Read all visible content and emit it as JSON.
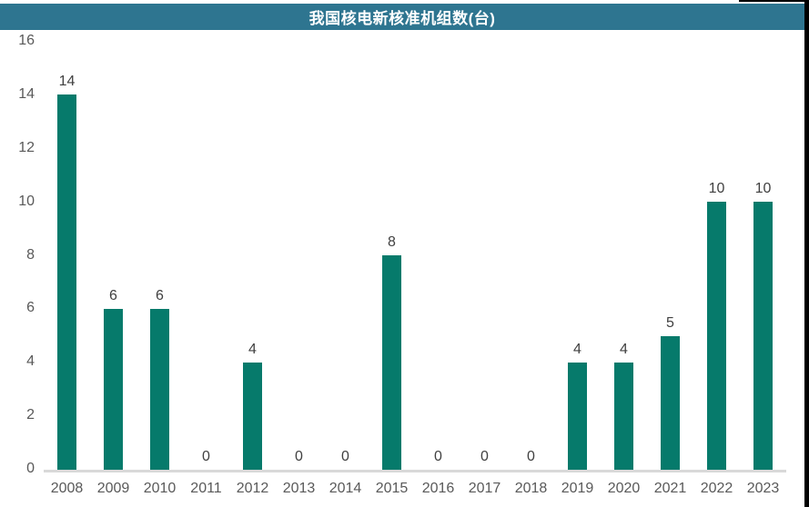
{
  "header": {
    "title": "我国核电新核准机组数(台)"
  },
  "colors": {
    "header_bg": "#2E7590",
    "header_text": "#FFFFFF",
    "bar": "#067A6B",
    "data_label": "#404040",
    "axis_label": "#595959",
    "axis_line": "#D9D9D9",
    "screenshot_border": "#000000"
  },
  "chart_data": {
    "type": "bar",
    "title": "我国核电新核准机组数(台)",
    "categories": [
      "2008",
      "2009",
      "2010",
      "2011",
      "2012",
      "2013",
      "2014",
      "2015",
      "2016",
      "2017",
      "2018",
      "2019",
      "2020",
      "2021",
      "2022",
      "2023"
    ],
    "values": [
      14,
      6,
      6,
      0,
      4,
      0,
      0,
      8,
      0,
      0,
      0,
      4,
      4,
      5,
      10,
      10
    ],
    "xlabel": "",
    "ylabel": "",
    "ylim": [
      0,
      16
    ],
    "yticks": [
      16,
      14,
      12,
      10,
      8,
      6,
      4,
      2,
      0
    ],
    "grid": false,
    "legend_position": "none",
    "data_labels": true
  }
}
